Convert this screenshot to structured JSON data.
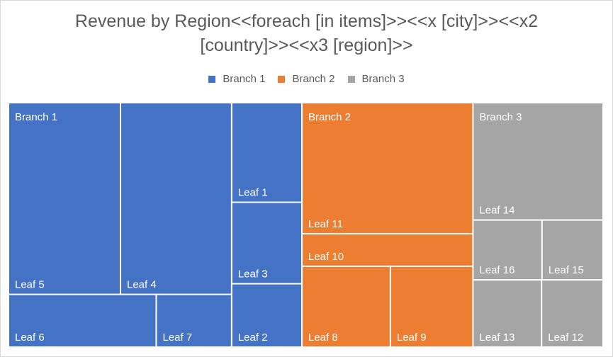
{
  "chart_data": {
    "type": "treemap",
    "title_lines": [
      "Revenue by Region<<foreach [in items]>><<x [city]>><<x2",
      "[country]>><<x3 [region]>>"
    ],
    "legend_position": "top",
    "branches": [
      {
        "name": "Branch 1",
        "color": "#4472c4",
        "leaves": [
          {
            "name": "Leaf 5",
            "value": 13.5
          },
          {
            "name": "Leaf 4",
            "value": 13.4
          },
          {
            "name": "Leaf 6",
            "value": 4.9
          },
          {
            "name": "Leaf 7",
            "value": 2.5
          },
          {
            "name": "Leaf 1",
            "value": 4.4
          },
          {
            "name": "Leaf 3",
            "value": 3.6
          },
          {
            "name": "Leaf 2",
            "value": 2.8
          }
        ]
      },
      {
        "name": "Branch 2",
        "color": "#ed7d31",
        "leaves": [
          {
            "name": "Leaf 11",
            "value": 14.1
          },
          {
            "name": "Leaf 10",
            "value": 3.5
          },
          {
            "name": "Leaf 8",
            "value": 4.5
          },
          {
            "name": "Leaf 9",
            "value": 4.2
          }
        ]
      },
      {
        "name": "Branch 3",
        "color": "#a5a5a5",
        "leaves": [
          {
            "name": "Leaf 14",
            "value": 9.6
          },
          {
            "name": "Leaf 16",
            "value": 2.6
          },
          {
            "name": "Leaf 15",
            "value": 2.3
          },
          {
            "name": "Leaf 13",
            "value": 2.9
          },
          {
            "name": "Leaf 12",
            "value": 2.6
          }
        ]
      }
    ]
  }
}
